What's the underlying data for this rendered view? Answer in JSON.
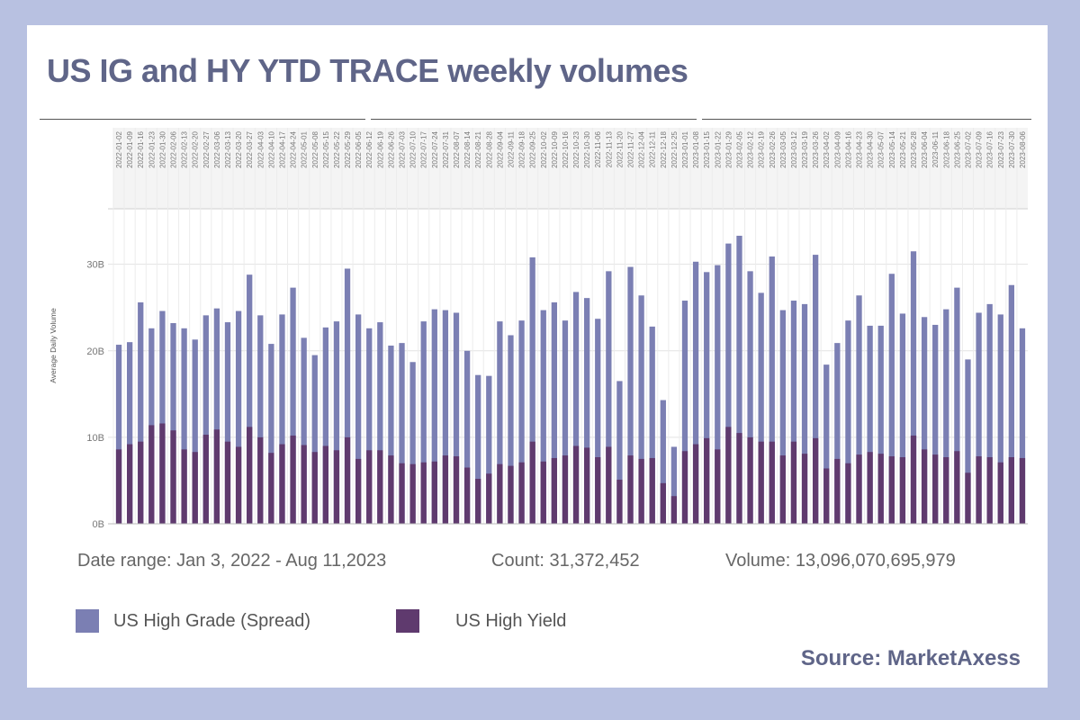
{
  "page": {
    "title": "US IG and HY YTD TRACE weekly volumes",
    "source": "Source: MarketAxess",
    "stats": {
      "date_range": "Date range: Jan 3, 2022 - Aug 11,2023",
      "count": "Count: 31,372,452",
      "volume": "Volume: 13,096,070,695,979"
    }
  },
  "colors": {
    "background": "#b8c1e1",
    "title": "#5f6588",
    "ig": "#7b7fb3",
    "hy": "#5f3a6e"
  },
  "chart_data": {
    "type": "bar",
    "ylabel": "Average Daily Volume",
    "ylim": [
      0,
      36
    ],
    "yticks": [
      0,
      10,
      20,
      30
    ],
    "ytick_labels": [
      "0B",
      "10B",
      "20B",
      "30B"
    ],
    "grid": true,
    "categories": [
      "2022-01-02",
      "2022-01-09",
      "2022-01-16",
      "2022-01-23",
      "2022-01-30",
      "2022-02-06",
      "2022-02-13",
      "2022-02-20",
      "2022-02-27",
      "2022-03-06",
      "2022-03-13",
      "2022-03-20",
      "2022-03-27",
      "2022-04-03",
      "2022-04-10",
      "2022-04-17",
      "2022-04-24",
      "2022-05-01",
      "2022-05-08",
      "2022-05-15",
      "2022-05-22",
      "2022-05-29",
      "2022-06-05",
      "2022-06-12",
      "2022-06-19",
      "2022-06-26",
      "2022-07-03",
      "2022-07-10",
      "2022-07-17",
      "2022-07-24",
      "2022-07-31",
      "2022-08-07",
      "2022-08-14",
      "2022-08-21",
      "2022-08-28",
      "2022-09-04",
      "2022-09-11",
      "2022-09-18",
      "2022-09-25",
      "2022-10-02",
      "2022-10-09",
      "2022-10-16",
      "2022-10-23",
      "2022-10-30",
      "2022-11-06",
      "2022-11-13",
      "2022-11-20",
      "2022-11-27",
      "2022-12-04",
      "2022-12-11",
      "2022-12-18",
      "2022-12-25",
      "2023-01-01",
      "2023-01-08",
      "2023-01-15",
      "2023-01-22",
      "2023-01-29",
      "2023-02-05",
      "2023-02-12",
      "2023-02-19",
      "2023-02-26",
      "2023-03-05",
      "2023-03-12",
      "2023-03-19",
      "2023-03-26",
      "2023-04-02",
      "2023-04-09",
      "2023-04-16",
      "2023-04-23",
      "2023-04-30",
      "2023-05-07",
      "2023-05-14",
      "2023-05-21",
      "2023-05-28",
      "2023-06-04",
      "2023-06-11",
      "2023-06-18",
      "2023-06-25",
      "2023-07-02",
      "2023-07-09",
      "2023-07-16",
      "2023-07-23",
      "2023-07-30",
      "2023-08-06"
    ],
    "series": [
      {
        "name": "US High Grade (Spread)",
        "color": "#7b7fb3",
        "values": [
          20.7,
          21.0,
          25.6,
          22.6,
          24.6,
          23.2,
          22.6,
          21.3,
          24.1,
          24.9,
          23.3,
          24.6,
          28.8,
          24.1,
          20.8,
          24.2,
          27.3,
          21.5,
          19.5,
          22.7,
          23.4,
          29.5,
          24.2,
          22.6,
          23.3,
          20.6,
          20.9,
          18.7,
          23.4,
          24.8,
          24.7,
          24.4,
          20.0,
          17.2,
          17.1,
          23.4,
          21.8,
          23.5,
          30.8,
          24.7,
          25.6,
          23.5,
          26.8,
          26.1,
          23.7,
          29.2,
          16.5,
          29.7,
          26.4,
          22.8,
          14.3,
          8.9,
          25.8,
          30.3,
          29.1,
          29.9,
          32.4,
          33.3,
          29.2,
          26.7,
          30.9,
          24.7,
          25.8,
          25.4,
          31.1,
          18.4,
          20.9,
          23.5,
          26.4,
          22.9,
          22.9,
          28.9,
          24.3,
          31.5,
          23.9,
          23.0,
          24.8,
          27.3,
          19.0,
          24.4,
          25.4,
          24.2,
          27.6,
          22.6
        ]
      },
      {
        "name": "US High Yield",
        "color": "#5f3a6e",
        "values": [
          8.6,
          9.2,
          9.5,
          11.4,
          11.6,
          10.8,
          8.6,
          8.3,
          10.3,
          10.9,
          9.5,
          8.9,
          11.2,
          10.0,
          8.2,
          9.2,
          10.2,
          9.1,
          8.3,
          9.0,
          8.5,
          10.0,
          7.5,
          8.5,
          8.5,
          7.9,
          7.0,
          6.9,
          7.1,
          7.2,
          7.9,
          7.8,
          6.5,
          5.2,
          5.8,
          6.9,
          6.7,
          7.1,
          9.5,
          7.2,
          7.6,
          7.9,
          9.0,
          8.8,
          7.7,
          8.9,
          5.1,
          7.9,
          7.5,
          7.6,
          4.7,
          3.2,
          8.4,
          9.2,
          9.9,
          8.6,
          11.2,
          10.5,
          10.0,
          9.5,
          9.5,
          7.9,
          9.5,
          8.1,
          9.9,
          6.4,
          7.5,
          7.0,
          8.0,
          8.3,
          8.1,
          7.8,
          7.7,
          10.2,
          8.6,
          8.0,
          7.7,
          8.4,
          5.9,
          7.8,
          7.7,
          7.1,
          7.7,
          7.6
        ]
      }
    ]
  }
}
